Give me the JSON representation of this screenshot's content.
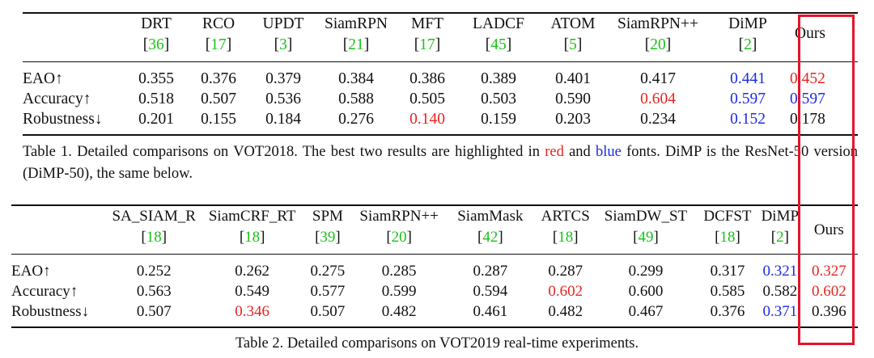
{
  "table1": {
    "headers": [
      {
        "name": "DRT",
        "ref": "36"
      },
      {
        "name": "RCO",
        "ref": "17"
      },
      {
        "name": "UPDT",
        "ref": "3"
      },
      {
        "name": "SiamRPN",
        "ref": "21"
      },
      {
        "name": "MFT",
        "ref": "17"
      },
      {
        "name": "LADCF",
        "ref": "45"
      },
      {
        "name": "ATOM",
        "ref": "5"
      },
      {
        "name": "SiamRPN++",
        "ref": "20"
      },
      {
        "name": "DiMP",
        "ref": "2"
      },
      {
        "name": "Ours",
        "ref": ""
      }
    ],
    "rows": [
      {
        "label": "EAO↑",
        "values": [
          "0.355",
          "0.376",
          "0.379",
          "0.384",
          "0.386",
          "0.389",
          "0.401",
          "0.417",
          "0.441",
          "0.452"
        ]
      },
      {
        "label": "Accuracy↑",
        "values": [
          "0.518",
          "0.507",
          "0.536",
          "0.588",
          "0.505",
          "0.503",
          "0.590",
          "0.604",
          "0.597",
          "0.597"
        ]
      },
      {
        "label": "Robustness↓",
        "values": [
          "0.201",
          "0.155",
          "0.184",
          "0.276",
          "0.140",
          "0.159",
          "0.203",
          "0.234",
          "0.152",
          "0.178"
        ]
      }
    ],
    "caption": {
      "part1": "Table 1. Detailed comparisons on VOT2018.  The best two results are highlighted in ",
      "red_word": "red",
      "mid": " and ",
      "blue_word": "blue",
      "part2": " fonts.  DiMP is the ResNet-50 version (DiMP-50), the same below."
    }
  },
  "table2": {
    "headers": [
      {
        "name": "SA_SIAM_R",
        "ref": "18"
      },
      {
        "name": "SiamCRF_RT",
        "ref": "18"
      },
      {
        "name": "SPM",
        "ref": "39"
      },
      {
        "name": "SiamRPN++",
        "ref": "20"
      },
      {
        "name": "SiamMask",
        "ref": "42"
      },
      {
        "name": "ARTCS",
        "ref": "18"
      },
      {
        "name": "SiamDW_ST",
        "ref": "49"
      },
      {
        "name": "DCFST",
        "ref": "18"
      },
      {
        "name": "DiMP",
        "ref": "2"
      },
      {
        "name": "Ours",
        "ref": ""
      }
    ],
    "rows": [
      {
        "label": "EAO↑",
        "values": [
          "0.252",
          "0.262",
          "0.275",
          "0.285",
          "0.287",
          "0.287",
          "0.299",
          "0.317",
          "0.321",
          "0.327"
        ]
      },
      {
        "label": "Accuracy↑",
        "values": [
          "0.563",
          "0.549",
          "0.577",
          "0.599",
          "0.594",
          "0.602",
          "0.600",
          "0.585",
          "0.582",
          "0.602"
        ]
      },
      {
        "label": "Robustness↓",
        "values": [
          "0.507",
          "0.346",
          "0.507",
          "0.482",
          "0.461",
          "0.482",
          "0.467",
          "0.376",
          "0.371",
          "0.396"
        ]
      }
    ],
    "caption": "Table 2. Detailed comparisons on VOT2019 real-time experiments."
  }
}
